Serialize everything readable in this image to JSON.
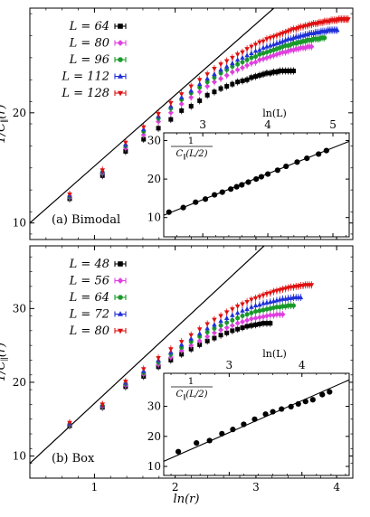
{
  "chart_data": [
    {
      "type": "scatter",
      "panel_label": "(a) Bimodal",
      "xlabel": "ln(r)",
      "ylabel": "1/C_∥(r)",
      "xlim": [
        0.2,
        4.2
      ],
      "ylim": [
        8.5,
        29.5
      ],
      "xticks": [
        1,
        2,
        3,
        4
      ],
      "yticks": [
        10,
        20
      ],
      "legend_position": "top-left",
      "fit_line": {
        "x": [
          0.2,
          3.3
        ],
        "y": [
          10.0,
          30.0
        ]
      },
      "series": [
        {
          "name": "L = 64",
          "color": "#000000",
          "marker": "square",
          "x": [
            0.693,
            1.099,
            1.386,
            1.609,
            1.792,
            1.946,
            2.079,
            2.197,
            2.303,
            2.398,
            2.485,
            2.565,
            2.639,
            2.708,
            2.773,
            2.833,
            2.89,
            2.944,
            2.996,
            3.045,
            3.091,
            3.135,
            3.178,
            3.219,
            3.258,
            3.296,
            3.332,
            3.367,
            3.401,
            3.434,
            3.466
          ],
          "y": [
            12.2,
            14.3,
            16.5,
            17.6,
            18.6,
            19.4,
            20.2,
            20.6,
            21.1,
            21.6,
            21.9,
            22.2,
            22.4,
            22.6,
            22.8,
            22.9,
            23.0,
            23.2,
            23.3,
            23.4,
            23.5,
            23.6,
            23.6,
            23.7,
            23.7,
            23.8,
            23.8,
            23.8,
            23.8,
            23.8,
            23.8
          ]
        },
        {
          "name": "L = 80",
          "color": "#e040e0",
          "marker": "diamond",
          "x": [
            0.693,
            1.099,
            1.386,
            1.609,
            1.792,
            1.946,
            2.079,
            2.197,
            2.303,
            2.398,
            2.485,
            2.565,
            2.639,
            2.708,
            2.773,
            2.833,
            2.89,
            2.944,
            2.996,
            3.045,
            3.091,
            3.135,
            3.178,
            3.219,
            3.258,
            3.296,
            3.332,
            3.367,
            3.401,
            3.434,
            3.466,
            3.497,
            3.526,
            3.555,
            3.584,
            3.611,
            3.638,
            3.664,
            3.689
          ],
          "y": [
            12.3,
            14.5,
            16.8,
            18.0,
            19.2,
            20.0,
            20.8,
            21.4,
            21.9,
            22.4,
            22.8,
            23.1,
            23.4,
            23.7,
            23.9,
            24.1,
            24.3,
            24.5,
            24.6,
            24.8,
            24.9,
            25.0,
            25.1,
            25.2,
            25.3,
            25.4,
            25.5,
            25.5,
            25.6,
            25.7,
            25.7,
            25.8,
            25.8,
            25.9,
            25.9,
            25.9,
            26.0,
            26.0,
            26.0
          ]
        },
        {
          "name": "L = 96",
          "color": "#1a9a2a",
          "marker": "circle",
          "x": [
            0.693,
            1.099,
            1.386,
            1.609,
            1.792,
            1.946,
            2.079,
            2.197,
            2.303,
            2.398,
            2.485,
            2.565,
            2.639,
            2.708,
            2.773,
            2.833,
            2.89,
            2.944,
            2.996,
            3.045,
            3.091,
            3.135,
            3.178,
            3.219,
            3.258,
            3.296,
            3.332,
            3.367,
            3.401,
            3.434,
            3.466,
            3.497,
            3.526,
            3.555,
            3.584,
            3.611,
            3.638,
            3.664,
            3.689,
            3.714,
            3.738,
            3.761,
            3.784,
            3.807,
            3.829,
            3.85
          ],
          "y": [
            12.4,
            14.6,
            17.0,
            18.3,
            19.5,
            20.4,
            21.2,
            21.8,
            22.3,
            22.8,
            23.2,
            23.6,
            23.9,
            24.2,
            24.4,
            24.6,
            24.8,
            25.0,
            25.1,
            25.3,
            25.4,
            25.5,
            25.6,
            25.7,
            25.8,
            25.9,
            26.0,
            26.1,
            26.1,
            26.2,
            26.3,
            26.3,
            26.4,
            26.4,
            26.5,
            26.5,
            26.6,
            26.6,
            26.6,
            26.7,
            26.7,
            26.7,
            26.7,
            26.8,
            26.8,
            26.8
          ]
        },
        {
          "name": "L = 112",
          "color": "#1f2fd8",
          "marker": "triangle-up",
          "x": [
            0.693,
            1.099,
            1.386,
            1.609,
            1.792,
            1.946,
            2.079,
            2.197,
            2.303,
            2.398,
            2.485,
            2.565,
            2.639,
            2.708,
            2.773,
            2.833,
            2.89,
            2.944,
            2.996,
            3.045,
            3.091,
            3.135,
            3.178,
            3.219,
            3.258,
            3.296,
            3.332,
            3.367,
            3.401,
            3.434,
            3.466,
            3.497,
            3.526,
            3.555,
            3.584,
            3.611,
            3.638,
            3.664,
            3.689,
            3.714,
            3.738,
            3.761,
            3.784,
            3.807,
            3.829,
            3.85,
            3.871,
            3.892,
            3.912,
            3.932,
            3.951,
            3.97,
            3.989,
            4.007
          ],
          "y": [
            12.5,
            14.7,
            17.1,
            18.5,
            19.7,
            20.6,
            21.4,
            22.0,
            22.6,
            23.1,
            23.5,
            23.9,
            24.2,
            24.5,
            24.8,
            25.0,
            25.2,
            25.4,
            25.6,
            25.7,
            25.9,
            26.0,
            26.1,
            26.2,
            26.3,
            26.4,
            26.5,
            26.6,
            26.7,
            26.7,
            26.8,
            26.9,
            26.9,
            27.0,
            27.0,
            27.1,
            27.1,
            27.2,
            27.2,
            27.2,
            27.3,
            27.3,
            27.3,
            27.4,
            27.4,
            27.4,
            27.4,
            27.5,
            27.5,
            27.5,
            27.5,
            27.5,
            27.5,
            27.5
          ]
        },
        {
          "name": "L = 128",
          "color": "#e01010",
          "marker": "triangle-down",
          "x": [
            0.693,
            1.099,
            1.386,
            1.609,
            1.792,
            1.946,
            2.079,
            2.197,
            2.303,
            2.398,
            2.485,
            2.565,
            2.639,
            2.708,
            2.773,
            2.833,
            2.89,
            2.944,
            2.996,
            3.045,
            3.091,
            3.135,
            3.178,
            3.219,
            3.258,
            3.296,
            3.332,
            3.367,
            3.401,
            3.434,
            3.466,
            3.497,
            3.526,
            3.555,
            3.584,
            3.611,
            3.638,
            3.664,
            3.689,
            3.714,
            3.738,
            3.761,
            3.784,
            3.807,
            3.829,
            3.85,
            3.871,
            3.892,
            3.912,
            3.932,
            3.951,
            3.97,
            3.989,
            4.007,
            4.025,
            4.043,
            4.06,
            4.078,
            4.094,
            4.111,
            4.127,
            4.143
          ],
          "y": [
            12.6,
            14.8,
            17.3,
            18.7,
            19.9,
            20.9,
            21.7,
            22.4,
            23.0,
            23.5,
            24.0,
            24.4,
            24.7,
            25.0,
            25.3,
            25.5,
            25.8,
            26.0,
            26.2,
            26.4,
            26.5,
            26.7,
            26.8,
            26.9,
            27.0,
            27.1,
            27.2,
            27.3,
            27.4,
            27.5,
            27.6,
            27.6,
            27.7,
            27.8,
            27.8,
            27.9,
            27.9,
            28.0,
            28.0,
            28.1,
            28.1,
            28.1,
            28.2,
            28.2,
            28.2,
            28.3,
            28.3,
            28.3,
            28.3,
            28.4,
            28.4,
            28.4,
            28.4,
            28.4,
            28.5,
            28.5,
            28.5,
            28.5,
            28.5,
            28.5,
            28.5,
            28.5
          ]
        }
      ],
      "inset": {
        "type": "scatter",
        "xlabel": "ln(L)",
        "ylabel": "1/C_∥(L/2)",
        "xlim": [
          2.4,
          5.25
        ],
        "ylim": [
          5,
          32
        ],
        "xticks": [
          3,
          4,
          5
        ],
        "yticks": [
          10,
          20,
          30
        ],
        "fit_line": {
          "x": [
            2.4,
            5.25
          ],
          "y": [
            10.6,
            29.8
          ]
        },
        "x": [
          2.48,
          2.7,
          2.89,
          3.04,
          3.18,
          3.3,
          3.43,
          3.52,
          3.6,
          3.7,
          3.82,
          3.9,
          4.0,
          4.15,
          4.28,
          4.45,
          4.6,
          4.78,
          4.9
        ],
        "y": [
          11.4,
          12.6,
          14.0,
          14.8,
          15.9,
          16.6,
          17.4,
          18.0,
          18.5,
          19.2,
          20.0,
          20.6,
          21.3,
          22.3,
          23.3,
          24.4,
          25.4,
          26.5,
          27.4
        ]
      }
    },
    {
      "type": "scatter",
      "panel_label": "(b) Box",
      "xlabel": "ln(r)",
      "ylabel": "1/C_∥(r)",
      "xlim": [
        0.2,
        4.2
      ],
      "ylim": [
        7,
        38.5
      ],
      "xticks": [
        1,
        2,
        3,
        4
      ],
      "yticks": [
        10,
        20,
        30
      ],
      "legend_position": "top-left",
      "fit_line": {
        "x": [
          0.2,
          3.25
        ],
        "y": [
          9.0,
          40.0
        ]
      },
      "series": [
        {
          "name": "L = 48",
          "color": "#000000",
          "marker": "square",
          "x": [
            0.693,
            1.099,
            1.386,
            1.609,
            1.792,
            1.946,
            2.079,
            2.197,
            2.303,
            2.398,
            2.485,
            2.565,
            2.639,
            2.708,
            2.773,
            2.833,
            2.89,
            2.944,
            2.996,
            3.045,
            3.091,
            3.135,
            3.178
          ],
          "y": [
            14.1,
            16.6,
            19.4,
            20.8,
            22.1,
            23.0,
            23.8,
            24.5,
            25.1,
            25.6,
            26.0,
            26.4,
            26.7,
            27.0,
            27.2,
            27.4,
            27.6,
            27.7,
            27.8,
            27.9,
            28.0,
            28.0,
            28.0
          ]
        },
        {
          "name": "L = 56",
          "color": "#e040e0",
          "marker": "diamond",
          "x": [
            0.693,
            1.099,
            1.386,
            1.609,
            1.792,
            1.946,
            2.079,
            2.197,
            2.303,
            2.398,
            2.485,
            2.565,
            2.639,
            2.708,
            2.773,
            2.833,
            2.89,
            2.944,
            2.996,
            3.045,
            3.091,
            3.135,
            3.178,
            3.219,
            3.258,
            3.296,
            3.332
          ],
          "y": [
            14.2,
            16.7,
            19.6,
            21.1,
            22.4,
            23.4,
            24.3,
            25.0,
            25.6,
            26.2,
            26.7,
            27.1,
            27.4,
            27.7,
            28.0,
            28.2,
            28.4,
            28.6,
            28.7,
            28.8,
            28.9,
            29.0,
            29.1,
            29.1,
            29.2,
            29.2,
            29.2
          ]
        },
        {
          "name": "L = 64",
          "color": "#1a9a2a",
          "marker": "circle",
          "x": [
            0.693,
            1.099,
            1.386,
            1.609,
            1.792,
            1.946,
            2.079,
            2.197,
            2.303,
            2.398,
            2.485,
            2.565,
            2.639,
            2.708,
            2.773,
            2.833,
            2.89,
            2.944,
            2.996,
            3.045,
            3.091,
            3.135,
            3.178,
            3.219,
            3.258,
            3.296,
            3.332,
            3.367,
            3.401,
            3.434,
            3.466
          ],
          "y": [
            14.3,
            16.8,
            19.8,
            21.3,
            22.7,
            23.8,
            24.7,
            25.5,
            26.2,
            26.8,
            27.3,
            27.7,
            28.1,
            28.4,
            28.7,
            29.0,
            29.2,
            29.4,
            29.6,
            29.7,
            29.8,
            29.9,
            30.0,
            30.1,
            30.2,
            30.2,
            30.3,
            30.3,
            30.4,
            30.4,
            30.4
          ]
        },
        {
          "name": "L = 72",
          "color": "#1f2fd8",
          "marker": "triangle-up",
          "x": [
            0.693,
            1.099,
            1.386,
            1.609,
            1.792,
            1.946,
            2.079,
            2.197,
            2.303,
            2.398,
            2.485,
            2.565,
            2.639,
            2.708,
            2.773,
            2.833,
            2.89,
            2.944,
            2.996,
            3.045,
            3.091,
            3.135,
            3.178,
            3.219,
            3.258,
            3.296,
            3.332,
            3.367,
            3.401,
            3.434,
            3.466,
            3.497,
            3.526,
            3.555
          ],
          "y": [
            14.4,
            16.9,
            19.9,
            21.5,
            23.0,
            24.1,
            25.1,
            25.9,
            26.6,
            27.3,
            27.8,
            28.3,
            28.7,
            29.1,
            29.4,
            29.7,
            29.9,
            30.2,
            30.4,
            30.5,
            30.7,
            30.8,
            30.9,
            31.0,
            31.1,
            31.2,
            31.3,
            31.3,
            31.4,
            31.4,
            31.5,
            31.5,
            31.5,
            31.5
          ]
        },
        {
          "name": "L = 80",
          "color": "#e01010",
          "marker": "triangle-down",
          "x": [
            0.693,
            1.099,
            1.386,
            1.609,
            1.792,
            1.946,
            2.079,
            2.197,
            2.303,
            2.398,
            2.485,
            2.565,
            2.639,
            2.708,
            2.773,
            2.833,
            2.89,
            2.944,
            2.996,
            3.045,
            3.091,
            3.135,
            3.178,
            3.219,
            3.258,
            3.296,
            3.332,
            3.367,
            3.401,
            3.434,
            3.466,
            3.497,
            3.526,
            3.555,
            3.584,
            3.611,
            3.638,
            3.664,
            3.689
          ],
          "y": [
            14.5,
            17.0,
            20.1,
            21.8,
            23.3,
            24.5,
            25.5,
            26.4,
            27.2,
            27.9,
            28.5,
            29.0,
            29.5,
            29.9,
            30.3,
            30.6,
            30.9,
            31.2,
            31.4,
            31.6,
            31.8,
            32.0,
            32.1,
            32.3,
            32.4,
            32.5,
            32.6,
            32.7,
            32.8,
            32.9,
            32.9,
            33.0,
            33.0,
            33.1,
            33.1,
            33.2,
            33.2,
            33.2,
            33.2
          ]
        }
      ],
      "inset": {
        "type": "scatter",
        "xlabel": "ln(L)",
        "ylabel": "1/C_∥(L/2)",
        "xlim": [
          2.1,
          4.65
        ],
        "ylim": [
          7,
          41
        ],
        "xticks": [
          3,
          4
        ],
        "yticks": [
          10,
          20,
          30
        ],
        "fit_line": {
          "x": [
            2.1,
            4.65
          ],
          "y": [
            11.7,
            38.8
          ]
        },
        "x": [
          2.3,
          2.55,
          2.73,
          2.9,
          3.05,
          3.2,
          3.35,
          3.5,
          3.6,
          3.72,
          3.85,
          3.95,
          4.05,
          4.15,
          4.28,
          4.38
        ],
        "y": [
          14.9,
          17.8,
          18.6,
          20.9,
          22.3,
          24.0,
          25.7,
          27.4,
          28.2,
          29.1,
          29.9,
          30.8,
          31.6,
          32.2,
          33.9,
          34.8
        ]
      }
    }
  ]
}
